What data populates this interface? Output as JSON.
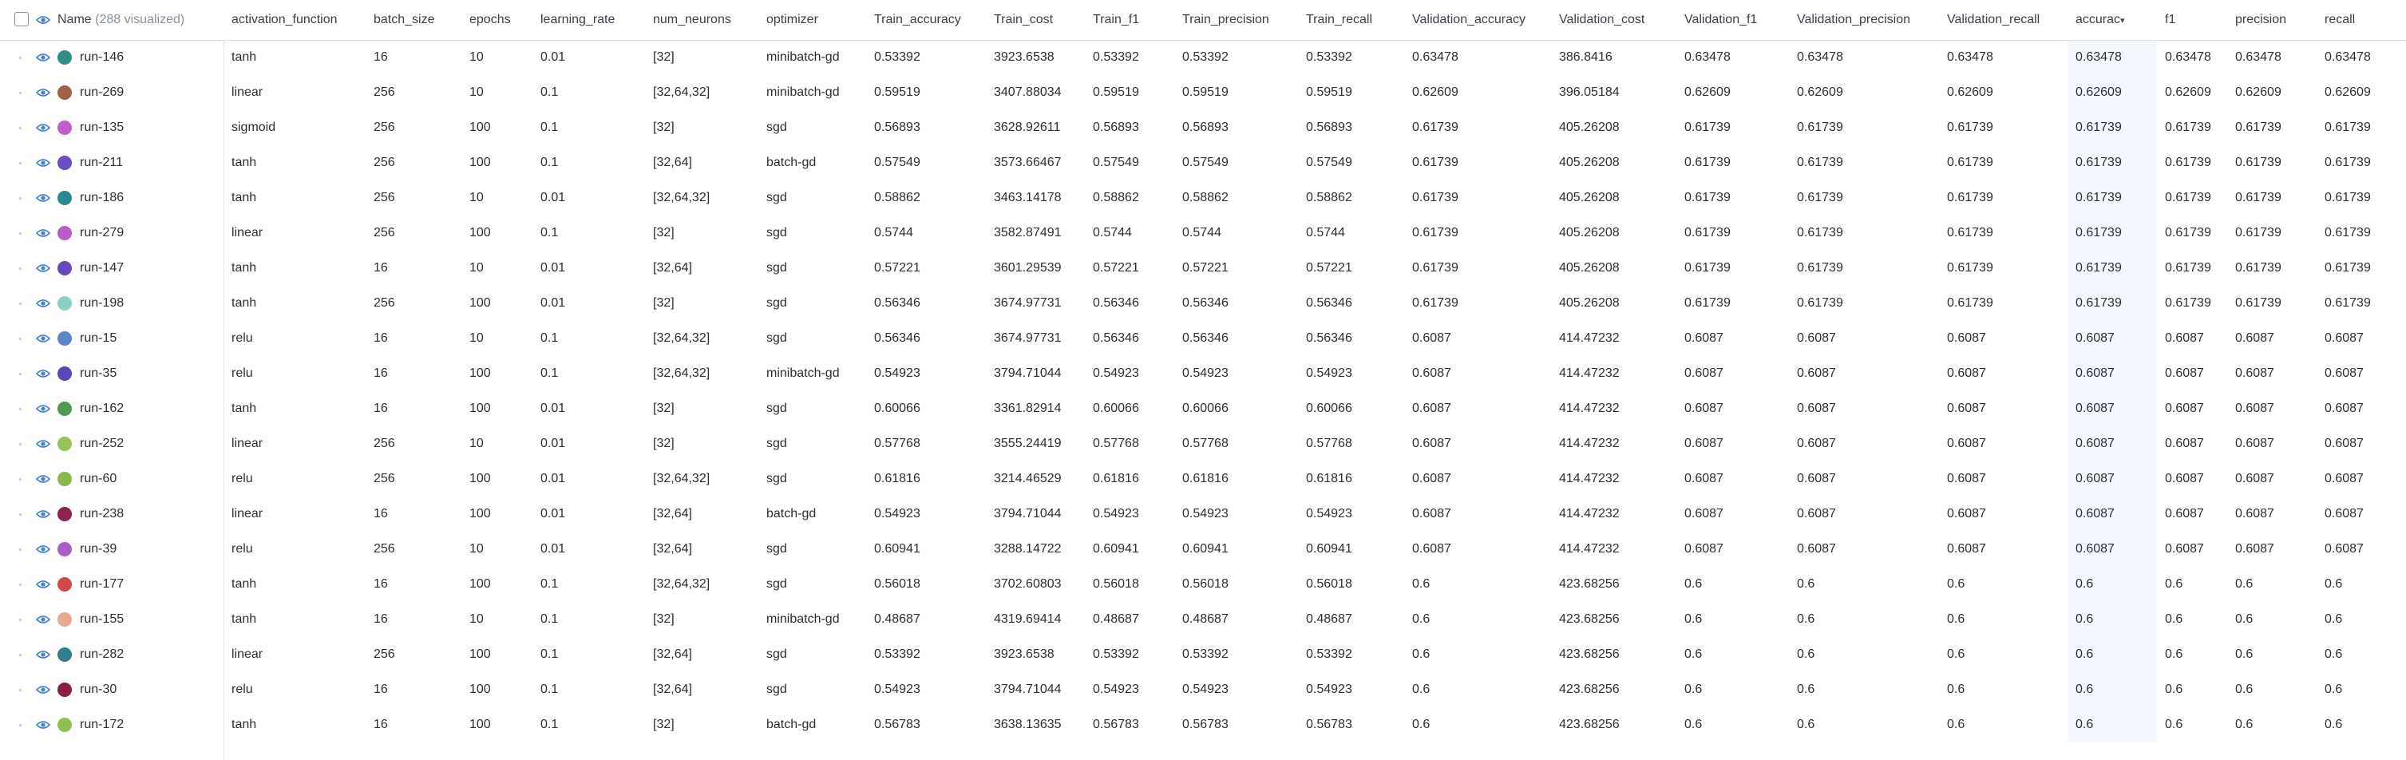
{
  "header": {
    "name_label": "Name",
    "visualized_count": "(288 visualized)",
    "sort_indicator": "▾",
    "columns": [
      "activation_function",
      "batch_size",
      "epochs",
      "learning_rate",
      "num_neurons",
      "optimizer",
      "Train_accuracy",
      "Train_cost",
      "Train_f1",
      "Train_precision",
      "Train_recall",
      "Validation_accuracy",
      "Validation_cost",
      "Validation_f1",
      "Validation_precision",
      "Validation_recall",
      "accurac",
      "f1",
      "precision",
      "recall"
    ]
  },
  "colors": {
    "accent_eye": "#3f7fd6",
    "sorted_column_bg": "#f2f8fd",
    "border": "#dde1e6"
  },
  "rows": [
    {
      "name": "run-146",
      "color": "#2f8f88",
      "cells": [
        "tanh",
        "16",
        "10",
        "0.01",
        "[32]",
        "minibatch-gd",
        "0.53392",
        "3923.6538",
        "0.53392",
        "0.53392",
        "0.53392",
        "0.63478",
        "386.8416",
        "0.63478",
        "0.63478",
        "0.63478",
        "0.63478",
        "0.63478",
        "0.63478",
        "0.63478"
      ]
    },
    {
      "name": "run-269",
      "color": "#a2624a",
      "cells": [
        "linear",
        "256",
        "10",
        "0.1",
        "[32,64,32]",
        "minibatch-gd",
        "0.59519",
        "3407.88034",
        "0.59519",
        "0.59519",
        "0.59519",
        "0.62609",
        "396.05184",
        "0.62609",
        "0.62609",
        "0.62609",
        "0.62609",
        "0.62609",
        "0.62609",
        "0.62609"
      ]
    },
    {
      "name": "run-135",
      "color": "#c05fc9",
      "cells": [
        "sigmoid",
        "256",
        "100",
        "0.1",
        "[32]",
        "sgd",
        "0.56893",
        "3628.92611",
        "0.56893",
        "0.56893",
        "0.56893",
        "0.61739",
        "405.26208",
        "0.61739",
        "0.61739",
        "0.61739",
        "0.61739",
        "0.61739",
        "0.61739",
        "0.61739"
      ]
    },
    {
      "name": "run-211",
      "color": "#6a4fc2",
      "cells": [
        "tanh",
        "256",
        "100",
        "0.1",
        "[32,64]",
        "batch-gd",
        "0.57549",
        "3573.66467",
        "0.57549",
        "0.57549",
        "0.57549",
        "0.61739",
        "405.26208",
        "0.61739",
        "0.61739",
        "0.61739",
        "0.61739",
        "0.61739",
        "0.61739",
        "0.61739"
      ]
    },
    {
      "name": "run-186",
      "color": "#2a8a93",
      "cells": [
        "tanh",
        "256",
        "10",
        "0.01",
        "[32,64,32]",
        "sgd",
        "0.58862",
        "3463.14178",
        "0.58862",
        "0.58862",
        "0.58862",
        "0.61739",
        "405.26208",
        "0.61739",
        "0.61739",
        "0.61739",
        "0.61739",
        "0.61739",
        "0.61739",
        "0.61739"
      ]
    },
    {
      "name": "run-279",
      "color": "#b85cc9",
      "cells": [
        "linear",
        "256",
        "100",
        "0.1",
        "[32]",
        "sgd",
        "0.5744",
        "3582.87491",
        "0.5744",
        "0.5744",
        "0.5744",
        "0.61739",
        "405.26208",
        "0.61739",
        "0.61739",
        "0.61739",
        "0.61739",
        "0.61739",
        "0.61739",
        "0.61739"
      ]
    },
    {
      "name": "run-147",
      "color": "#6548b9",
      "cells": [
        "tanh",
        "16",
        "10",
        "0.01",
        "[32,64]",
        "sgd",
        "0.57221",
        "3601.29539",
        "0.57221",
        "0.57221",
        "0.57221",
        "0.61739",
        "405.26208",
        "0.61739",
        "0.61739",
        "0.61739",
        "0.61739",
        "0.61739",
        "0.61739",
        "0.61739"
      ]
    },
    {
      "name": "run-198",
      "color": "#8ad0c5",
      "cells": [
        "tanh",
        "256",
        "100",
        "0.01",
        "[32]",
        "sgd",
        "0.56346",
        "3674.97731",
        "0.56346",
        "0.56346",
        "0.56346",
        "0.61739",
        "405.26208",
        "0.61739",
        "0.61739",
        "0.61739",
        "0.61739",
        "0.61739",
        "0.61739",
        "0.61739"
      ]
    },
    {
      "name": "run-15",
      "color": "#5b84c9",
      "cells": [
        "relu",
        "16",
        "10",
        "0.1",
        "[32,64,32]",
        "sgd",
        "0.56346",
        "3674.97731",
        "0.56346",
        "0.56346",
        "0.56346",
        "0.6087",
        "414.47232",
        "0.6087",
        "0.6087",
        "0.6087",
        "0.6087",
        "0.6087",
        "0.6087",
        "0.6087"
      ]
    },
    {
      "name": "run-35",
      "color": "#5a47b8",
      "cells": [
        "relu",
        "16",
        "100",
        "0.1",
        "[32,64,32]",
        "minibatch-gd",
        "0.54923",
        "3794.71044",
        "0.54923",
        "0.54923",
        "0.54923",
        "0.6087",
        "414.47232",
        "0.6087",
        "0.6087",
        "0.6087",
        "0.6087",
        "0.6087",
        "0.6087",
        "0.6087"
      ]
    },
    {
      "name": "run-162",
      "color": "#4f9a52",
      "cells": [
        "tanh",
        "16",
        "100",
        "0.01",
        "[32]",
        "sgd",
        "0.60066",
        "3361.82914",
        "0.60066",
        "0.60066",
        "0.60066",
        "0.6087",
        "414.47232",
        "0.6087",
        "0.6087",
        "0.6087",
        "0.6087",
        "0.6087",
        "0.6087",
        "0.6087"
      ]
    },
    {
      "name": "run-252",
      "color": "#9ac05a",
      "cells": [
        "linear",
        "256",
        "10",
        "0.01",
        "[32]",
        "sgd",
        "0.57768",
        "3555.24419",
        "0.57768",
        "0.57768",
        "0.57768",
        "0.6087",
        "414.47232",
        "0.6087",
        "0.6087",
        "0.6087",
        "0.6087",
        "0.6087",
        "0.6087",
        "0.6087"
      ]
    },
    {
      "name": "run-60",
      "color": "#8ab94a",
      "cells": [
        "relu",
        "256",
        "100",
        "0.01",
        "[32,64,32]",
        "sgd",
        "0.61816",
        "3214.46529",
        "0.61816",
        "0.61816",
        "0.61816",
        "0.6087",
        "414.47232",
        "0.6087",
        "0.6087",
        "0.6087",
        "0.6087",
        "0.6087",
        "0.6087",
        "0.6087"
      ]
    },
    {
      "name": "run-238",
      "color": "#8e2250",
      "cells": [
        "linear",
        "16",
        "100",
        "0.01",
        "[32,64]",
        "batch-gd",
        "0.54923",
        "3794.71044",
        "0.54923",
        "0.54923",
        "0.54923",
        "0.6087",
        "414.47232",
        "0.6087",
        "0.6087",
        "0.6087",
        "0.6087",
        "0.6087",
        "0.6087",
        "0.6087"
      ]
    },
    {
      "name": "run-39",
      "color": "#a95fc0",
      "cells": [
        "relu",
        "256",
        "10",
        "0.01",
        "[32,64]",
        "sgd",
        "0.60941",
        "3288.14722",
        "0.60941",
        "0.60941",
        "0.60941",
        "0.6087",
        "414.47232",
        "0.6087",
        "0.6087",
        "0.6087",
        "0.6087",
        "0.6087",
        "0.6087",
        "0.6087"
      ]
    },
    {
      "name": "run-177",
      "color": "#d04a4a",
      "cells": [
        "tanh",
        "16",
        "100",
        "0.1",
        "[32,64,32]",
        "sgd",
        "0.56018",
        "3702.60803",
        "0.56018",
        "0.56018",
        "0.56018",
        "0.6",
        "423.68256",
        "0.6",
        "0.6",
        "0.6",
        "0.6",
        "0.6",
        "0.6",
        "0.6"
      ]
    },
    {
      "name": "run-155",
      "color": "#e8a98e",
      "cells": [
        "tanh",
        "16",
        "10",
        "0.1",
        "[32]",
        "minibatch-gd",
        "0.48687",
        "4319.69414",
        "0.48687",
        "0.48687",
        "0.48687",
        "0.6",
        "423.68256",
        "0.6",
        "0.6",
        "0.6",
        "0.6",
        "0.6",
        "0.6",
        "0.6"
      ]
    },
    {
      "name": "run-282",
      "color": "#2f7f88",
      "cells": [
        "linear",
        "256",
        "100",
        "0.1",
        "[32,64]",
        "sgd",
        "0.53392",
        "3923.6538",
        "0.53392",
        "0.53392",
        "0.53392",
        "0.6",
        "423.68256",
        "0.6",
        "0.6",
        "0.6",
        "0.6",
        "0.6",
        "0.6",
        "0.6"
      ]
    },
    {
      "name": "run-30",
      "color": "#8a1f47",
      "cells": [
        "relu",
        "16",
        "100",
        "0.1",
        "[32,64]",
        "sgd",
        "0.54923",
        "3794.71044",
        "0.54923",
        "0.54923",
        "0.54923",
        "0.6",
        "423.68256",
        "0.6",
        "0.6",
        "0.6",
        "0.6",
        "0.6",
        "0.6",
        "0.6"
      ]
    },
    {
      "name": "run-172",
      "color": "#8fc04f",
      "cells": [
        "tanh",
        "16",
        "100",
        "0.1",
        "[32]",
        "batch-gd",
        "0.56783",
        "3638.13635",
        "0.56783",
        "0.56783",
        "0.56783",
        "0.6",
        "423.68256",
        "0.6",
        "0.6",
        "0.6",
        "0.6",
        "0.6",
        "0.6",
        "0.6"
      ]
    }
  ]
}
